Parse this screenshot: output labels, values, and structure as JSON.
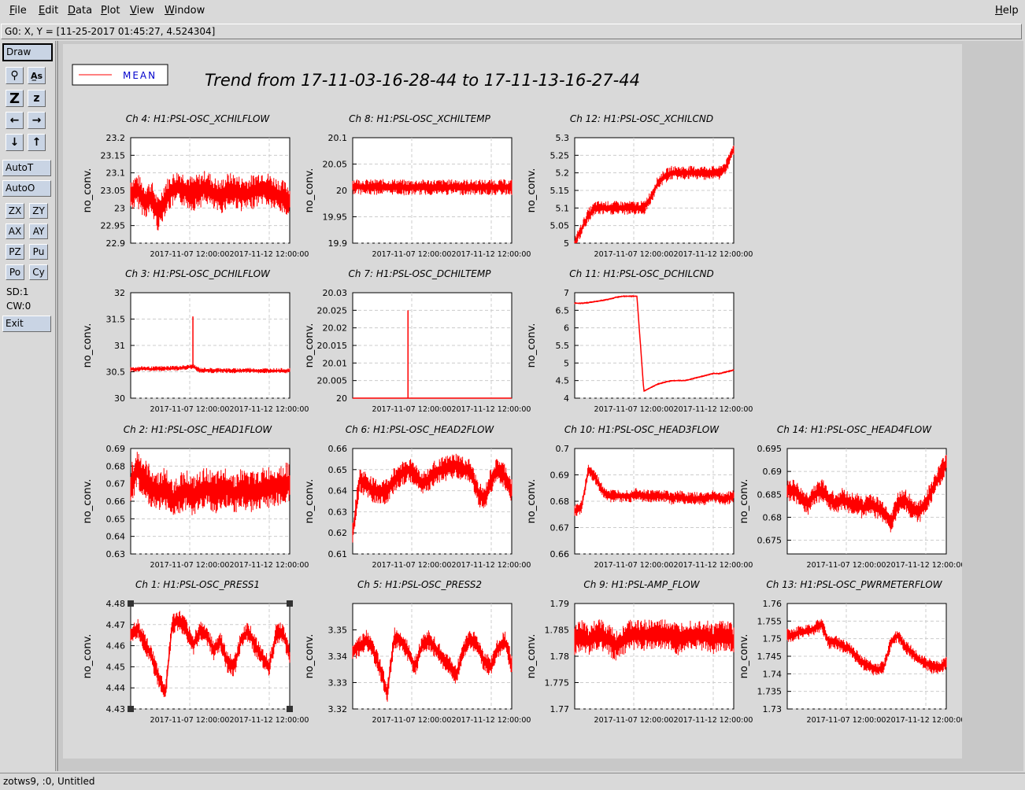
{
  "menu": {
    "file": "File",
    "edit": "Edit",
    "data": "Data",
    "plot": "Plot",
    "view": "View",
    "window": "Window",
    "help": "Help"
  },
  "coord_readout": "G0: X, Y = [11-25-2017 01:45:27, 4.524304]",
  "toolbar": {
    "draw": "Draw",
    "autot": "AutoT",
    "autoo": "AutoO",
    "small": [
      "ZX",
      "ZY",
      "AX",
      "AY",
      "PZ",
      "Pu",
      "Po",
      "Cy"
    ],
    "sd": "SD:1",
    "cw": "CW:0",
    "exit": "Exit",
    "icons": [
      "magnifier-icon",
      "text-tool-icon",
      "zoom-z-large-icon",
      "zoom-z-small-icon",
      "arrow-left-icon",
      "arrow-right-icon",
      "arrow-down-icon",
      "arrow-up-icon"
    ],
    "icon_glyphs": [
      "⚲",
      "A̲s",
      "Z",
      "z",
      "←",
      "→",
      "↓",
      "↑"
    ]
  },
  "legend": {
    "label": "MEAN",
    "color": "#ff0000"
  },
  "page_title": "Trend from 17-11-03-16-28-44 to 17-11-13-16-27-44",
  "status": "zotws9, :0, Untitled",
  "chart_data": [
    {
      "type": "line",
      "title": "Ch 4: H1:PSL-OSC_XCHILFLOW",
      "ylabel": "no_conv.",
      "ylim": [
        22.9,
        23.2
      ],
      "yticks": [
        "23.2",
        "23.15",
        "23.1",
        "23.05",
        "23",
        "22.95",
        "22.9"
      ],
      "xticks": [
        "2017-11-07 12:00:00",
        "2017-11-12 12:00:00"
      ],
      "values": [
        23.04,
        23.05,
        23.02,
        23.03,
        22.98,
        23.03,
        23.05,
        23.06,
        23.05,
        23.04,
        23.05,
        23.06,
        23.04,
        23.03,
        23.05,
        23.05,
        23.04,
        23.04,
        23.05,
        23.06,
        23.05,
        23.04,
        23.03,
        23.02
      ],
      "noise": 0.05
    },
    {
      "type": "line",
      "title": "Ch 8: H1:PSL-OSC_XCHILTEMP",
      "ylabel": "no_conv.",
      "ylim": [
        19.9,
        20.1
      ],
      "yticks": [
        "20.1",
        "20.05",
        "20",
        "19.95",
        "19.9"
      ],
      "xticks": [
        "2017-11-07 12:00:00",
        "2017-11-12 12:00:00"
      ],
      "values": [
        20.008,
        20.007,
        20.006,
        20.006,
        20.007,
        20.006,
        20.007,
        20.006,
        20.005,
        20.006,
        20.006,
        20.006,
        20.006,
        20.006,
        20.006,
        20.007,
        20.006,
        20.006,
        20.006,
        20.006,
        20.006,
        20.006,
        20.006,
        20.006
      ],
      "noise": 0.015
    },
    {
      "type": "line",
      "title": "Ch 12: H1:PSL-OSC_XCHILCND",
      "ylabel": "no_conv.",
      "ylim": [
        5,
        5.3
      ],
      "yticks": [
        "5.3",
        "5.25",
        "5.2",
        "5.15",
        "5.1",
        "5.05",
        "5"
      ],
      "xticks": [
        "2017-11-07 12:00:00",
        "2017-11-12 12:00:00"
      ],
      "values": [
        5,
        5.04,
        5.08,
        5.1,
        5.1,
        5.1,
        5.1,
        5.1,
        5.1,
        5.1,
        5.1,
        5.13,
        5.17,
        5.19,
        5.2,
        5.2,
        5.2,
        5.2,
        5.2,
        5.2,
        5.2,
        5.2,
        5.22,
        5.27
      ],
      "noise": 0.02
    },
    {
      "type": "line",
      "title": "Ch 3: H1:PSL-OSC_DCHILFLOW",
      "ylabel": "no_conv.",
      "ylim": [
        30,
        32
      ],
      "yticks": [
        "32",
        "31.5",
        "31",
        "30.5",
        "30"
      ],
      "xticks": [
        "2017-11-07 12:00:00",
        "2017-11-12 12:00:00"
      ],
      "values": [
        30.55,
        30.55,
        30.56,
        30.55,
        30.56,
        30.56,
        30.57,
        30.57,
        30.58,
        30.6,
        30.53,
        30.53,
        30.52,
        30.53,
        30.52,
        30.52,
        30.52,
        30.53,
        30.52,
        30.52,
        30.52,
        30.52,
        30.52,
        30.52
      ],
      "noise": 0.05,
      "spike": {
        "index": 9,
        "value": 31.55
      }
    },
    {
      "type": "line",
      "title": "Ch 7: H1:PSL-OSC_DCHILTEMP",
      "ylabel": "no_conv.",
      "ylim": [
        20,
        20.03
      ],
      "yticks": [
        "20.03",
        "20.025",
        "20.02",
        "20.015",
        "20.01",
        "20.005",
        "20"
      ],
      "xticks": [
        "2017-11-07 12:00:00",
        "2017-11-12 12:00:00"
      ],
      "values": [
        20,
        20,
        20,
        20,
        20,
        20,
        20,
        20,
        20,
        20,
        20,
        20,
        20,
        20,
        20,
        20,
        20,
        20,
        20,
        20,
        20,
        20,
        20,
        20
      ],
      "noise": 0,
      "spike": {
        "index": 8,
        "value": 20.025
      }
    },
    {
      "type": "line",
      "title": "Ch 11: H1:PSL-OSC_DCHILCND",
      "ylabel": "no_conv.",
      "ylim": [
        4,
        7
      ],
      "yticks": [
        "7",
        "6.5",
        "6",
        "5.5",
        "5",
        "4.5",
        "4"
      ],
      "xticks": [
        "2017-11-07 12:00:00",
        "2017-11-12 12:00:00"
      ],
      "values": [
        6.7,
        6.7,
        6.72,
        6.75,
        6.78,
        6.82,
        6.87,
        6.9,
        6.9,
        6.9,
        4.2,
        4.3,
        4.4,
        4.45,
        4.5,
        4.5,
        4.5,
        4.55,
        4.6,
        4.65,
        4.7,
        4.7,
        4.75,
        4.8
      ],
      "noise": 0.03
    },
    {
      "type": "line",
      "title": "Ch 2: H1:PSL-OSC_HEAD1FLOW",
      "ylabel": "no_conv.",
      "ylim": [
        0.63,
        0.69
      ],
      "yticks": [
        "0.69",
        "0.68",
        "0.67",
        "0.66",
        "0.65",
        "0.64",
        "0.63"
      ],
      "xticks": [
        "2017-11-07 12:00:00",
        "2017-11-12 12:00:00"
      ],
      "values": [
        0.67,
        0.678,
        0.672,
        0.668,
        0.665,
        0.668,
        0.66,
        0.664,
        0.667,
        0.662,
        0.665,
        0.668,
        0.664,
        0.666,
        0.668,
        0.664,
        0.667,
        0.666,
        0.665,
        0.667,
        0.668,
        0.669,
        0.67,
        0.67
      ],
      "noise": 0.012
    },
    {
      "type": "line",
      "title": "Ch 6: H1:PSL-OSC_HEAD2FLOW",
      "ylabel": "no_conv.",
      "ylim": [
        0.61,
        0.66
      ],
      "yticks": [
        "0.66",
        "0.65",
        "0.64",
        "0.63",
        "0.62",
        "0.61"
      ],
      "xticks": [
        "2017-11-07 12:00:00",
        "2017-11-12 12:00:00"
      ],
      "values": [
        0.62,
        0.645,
        0.643,
        0.64,
        0.639,
        0.64,
        0.645,
        0.648,
        0.65,
        0.648,
        0.643,
        0.645,
        0.649,
        0.65,
        0.651,
        0.652,
        0.65,
        0.649,
        0.64,
        0.635,
        0.645,
        0.65,
        0.647,
        0.64
      ],
      "noise": 0.006
    },
    {
      "type": "line",
      "title": "Ch 10: H1:PSL-OSC_HEAD3FLOW",
      "ylabel": "no_conv.",
      "ylim": [
        0.66,
        0.7
      ],
      "yticks": [
        "0.7",
        "0.69",
        "0.68",
        "0.67",
        "0.66"
      ],
      "xticks": [
        "2017-11-07 12:00:00",
        "2017-11-12 12:00:00"
      ],
      "values": [
        0.676,
        0.678,
        0.692,
        0.689,
        0.684,
        0.682,
        0.682,
        0.682,
        0.682,
        0.683,
        0.682,
        0.682,
        0.682,
        0.682,
        0.681,
        0.682,
        0.681,
        0.681,
        0.681,
        0.681,
        0.682,
        0.681,
        0.681,
        0.682
      ],
      "noise": 0.0025
    },
    {
      "type": "line",
      "title": "Ch 14: H1:PSL-OSC_HEAD4FLOW",
      "ylabel": "no_conv.",
      "ylim": [
        0.672,
        0.695
      ],
      "yticks": [
        "0.695",
        "0.69",
        "0.685",
        "0.68",
        "0.675"
      ],
      "xticks": [
        "2017-11-07 12:00:00",
        "2017-11-12 12:00:00"
      ],
      "values": [
        0.686,
        0.686,
        0.684,
        0.683,
        0.685,
        0.686,
        0.684,
        0.683,
        0.684,
        0.683,
        0.683,
        0.682,
        0.683,
        0.682,
        0.681,
        0.679,
        0.683,
        0.684,
        0.682,
        0.681,
        0.683,
        0.686,
        0.689,
        0.692
      ],
      "noise": 0.0025
    },
    {
      "type": "line",
      "title": "Ch 1: H1:PSL-OSC_PRESS1",
      "ylabel": "no_conv.",
      "ylim": [
        4.43,
        4.48
      ],
      "yticks": [
        "4.48",
        "4.47",
        "4.46",
        "4.45",
        "4.44",
        "4.43"
      ],
      "xticks": [
        "2017-11-07 12:00:00",
        "2017-11-12 12:00:00"
      ],
      "values": [
        4.465,
        4.468,
        4.462,
        4.455,
        4.445,
        4.437,
        4.47,
        4.472,
        4.468,
        4.46,
        4.467,
        4.465,
        4.458,
        4.462,
        4.452,
        4.45,
        4.463,
        4.467,
        4.46,
        4.455,
        4.45,
        4.465,
        4.467,
        4.455
      ],
      "noise": 0.005
    },
    {
      "type": "line",
      "title": "Ch 5: H1:PSL-OSC_PRESS2",
      "ylabel": "no_conv.",
      "ylim": [
        3.32,
        3.36
      ],
      "yticks": [
        "3.35",
        "3.34",
        "3.33",
        "3.32"
      ],
      "xticks": [
        "2017-11-07 12:00:00",
        "2017-11-12 12:00:00"
      ],
      "values": [
        3.342,
        3.344,
        3.346,
        3.342,
        3.335,
        3.326,
        3.347,
        3.346,
        3.342,
        3.336,
        3.344,
        3.346,
        3.343,
        3.339,
        3.336,
        3.333,
        3.342,
        3.347,
        3.344,
        3.338,
        3.336,
        3.343,
        3.346,
        3.337
      ],
      "noise": 0.004
    },
    {
      "type": "line",
      "title": "Ch 9: H1:PSL-AMP_FLOW",
      "ylabel": "no_conv.",
      "ylim": [
        1.77,
        1.79
      ],
      "yticks": [
        "1.79",
        "1.785",
        "1.78",
        "1.775",
        "1.77"
      ],
      "xticks": [
        "2017-11-07 12:00:00",
        "2017-11-12 12:00:00"
      ],
      "values": [
        1.783,
        1.784,
        1.783,
        1.784,
        1.784,
        1.783,
        1.782,
        1.783,
        1.784,
        1.784,
        1.784,
        1.784,
        1.784,
        1.784,
        1.784,
        1.783,
        1.784,
        1.784,
        1.784,
        1.784,
        1.783,
        1.784,
        1.784,
        1.783
      ],
      "noise": 0.003
    },
    {
      "type": "line",
      "title": "Ch 13: H1:PSL-OSC_PWRMETERFLOW",
      "ylabel": "no_conv.",
      "ylim": [
        1.73,
        1.76
      ],
      "yticks": [
        "1.76",
        "1.755",
        "1.75",
        "1.745",
        "1.74",
        "1.735",
        "1.73"
      ],
      "xticks": [
        "2017-11-07 12:00:00",
        "2017-11-12 12:00:00"
      ],
      "values": [
        1.751,
        1.751,
        1.752,
        1.752,
        1.753,
        1.754,
        1.749,
        1.749,
        1.748,
        1.747,
        1.745,
        1.743,
        1.742,
        1.741,
        1.742,
        1.749,
        1.751,
        1.748,
        1.746,
        1.744,
        1.743,
        1.742,
        1.742,
        1.743
      ],
      "noise": 0.002
    }
  ]
}
